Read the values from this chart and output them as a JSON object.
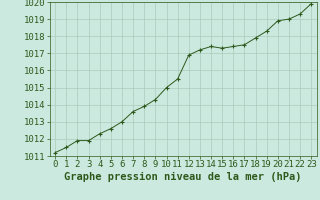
{
  "x": [
    0,
    1,
    2,
    3,
    4,
    5,
    6,
    7,
    8,
    9,
    10,
    11,
    12,
    13,
    14,
    15,
    16,
    17,
    18,
    19,
    20,
    21,
    22,
    23
  ],
  "y": [
    1011.2,
    1011.5,
    1011.9,
    1011.9,
    1012.3,
    1012.6,
    1013.0,
    1013.6,
    1013.9,
    1014.3,
    1015.0,
    1015.5,
    1016.9,
    1017.2,
    1017.4,
    1017.3,
    1017.4,
    1017.5,
    1017.9,
    1018.3,
    1018.9,
    1019.0,
    1019.3,
    1019.9
  ],
  "ylim": [
    1011,
    1020
  ],
  "xlim": [
    -0.5,
    23.5
  ],
  "yticks": [
    1011,
    1012,
    1013,
    1014,
    1015,
    1016,
    1017,
    1018,
    1019,
    1020
  ],
  "xticks": [
    0,
    1,
    2,
    3,
    4,
    5,
    6,
    7,
    8,
    9,
    10,
    11,
    12,
    13,
    14,
    15,
    16,
    17,
    18,
    19,
    20,
    21,
    22,
    23
  ],
  "line_color": "#2d5a1b",
  "marker_color": "#2d5a1b",
  "bg_color": "#cce9e0",
  "grid_color": "#aaccbb",
  "title": "Graphe pression niveau de la mer (hPa)",
  "title_color": "#2d5a1b",
  "title_fontsize": 7.5,
  "tick_fontsize": 6.5,
  "tick_color": "#2d5a1b",
  "spine_color": "#2d5a1b"
}
